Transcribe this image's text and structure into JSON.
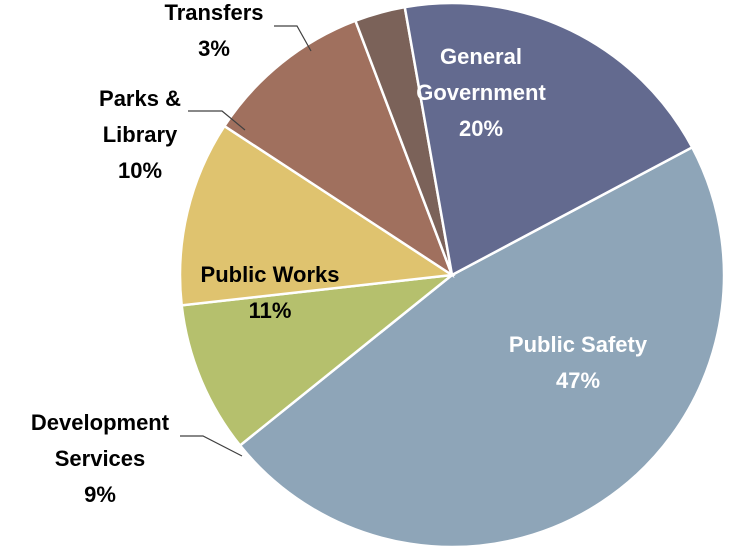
{
  "chart_data": {
    "type": "pie",
    "slices": [
      {
        "name": "Public Safety",
        "name_lines": [
          "Public Safety"
        ],
        "value": 47,
        "label": "47%",
        "color": "#8ea5b8",
        "text_color": "#ffffff"
      },
      {
        "name": "Development Services",
        "name_lines": [
          "Development",
          "Services"
        ],
        "value": 9,
        "label": "9%",
        "color": "#b5c06d",
        "text_color": "#000000"
      },
      {
        "name": "Public Works",
        "name_lines": [
          "Public Works"
        ],
        "value": 11,
        "label": "11%",
        "color": "#dfc36f",
        "text_color": "#000000"
      },
      {
        "name": "Parks & Library",
        "name_lines": [
          "Parks &",
          "Library"
        ],
        "value": 10,
        "label": "10%",
        "color": "#a0705e",
        "text_color": "#000000"
      },
      {
        "name": "Transfers",
        "name_lines": [
          "Transfers"
        ],
        "value": 3,
        "label": "3%",
        "color": "#7b6259",
        "text_color": "#000000"
      },
      {
        "name": "General Government",
        "name_lines": [
          "General",
          "Government"
        ],
        "value": 20,
        "label": "20%",
        "color": "#636a8f",
        "text_color": "#ffffff"
      }
    ]
  }
}
